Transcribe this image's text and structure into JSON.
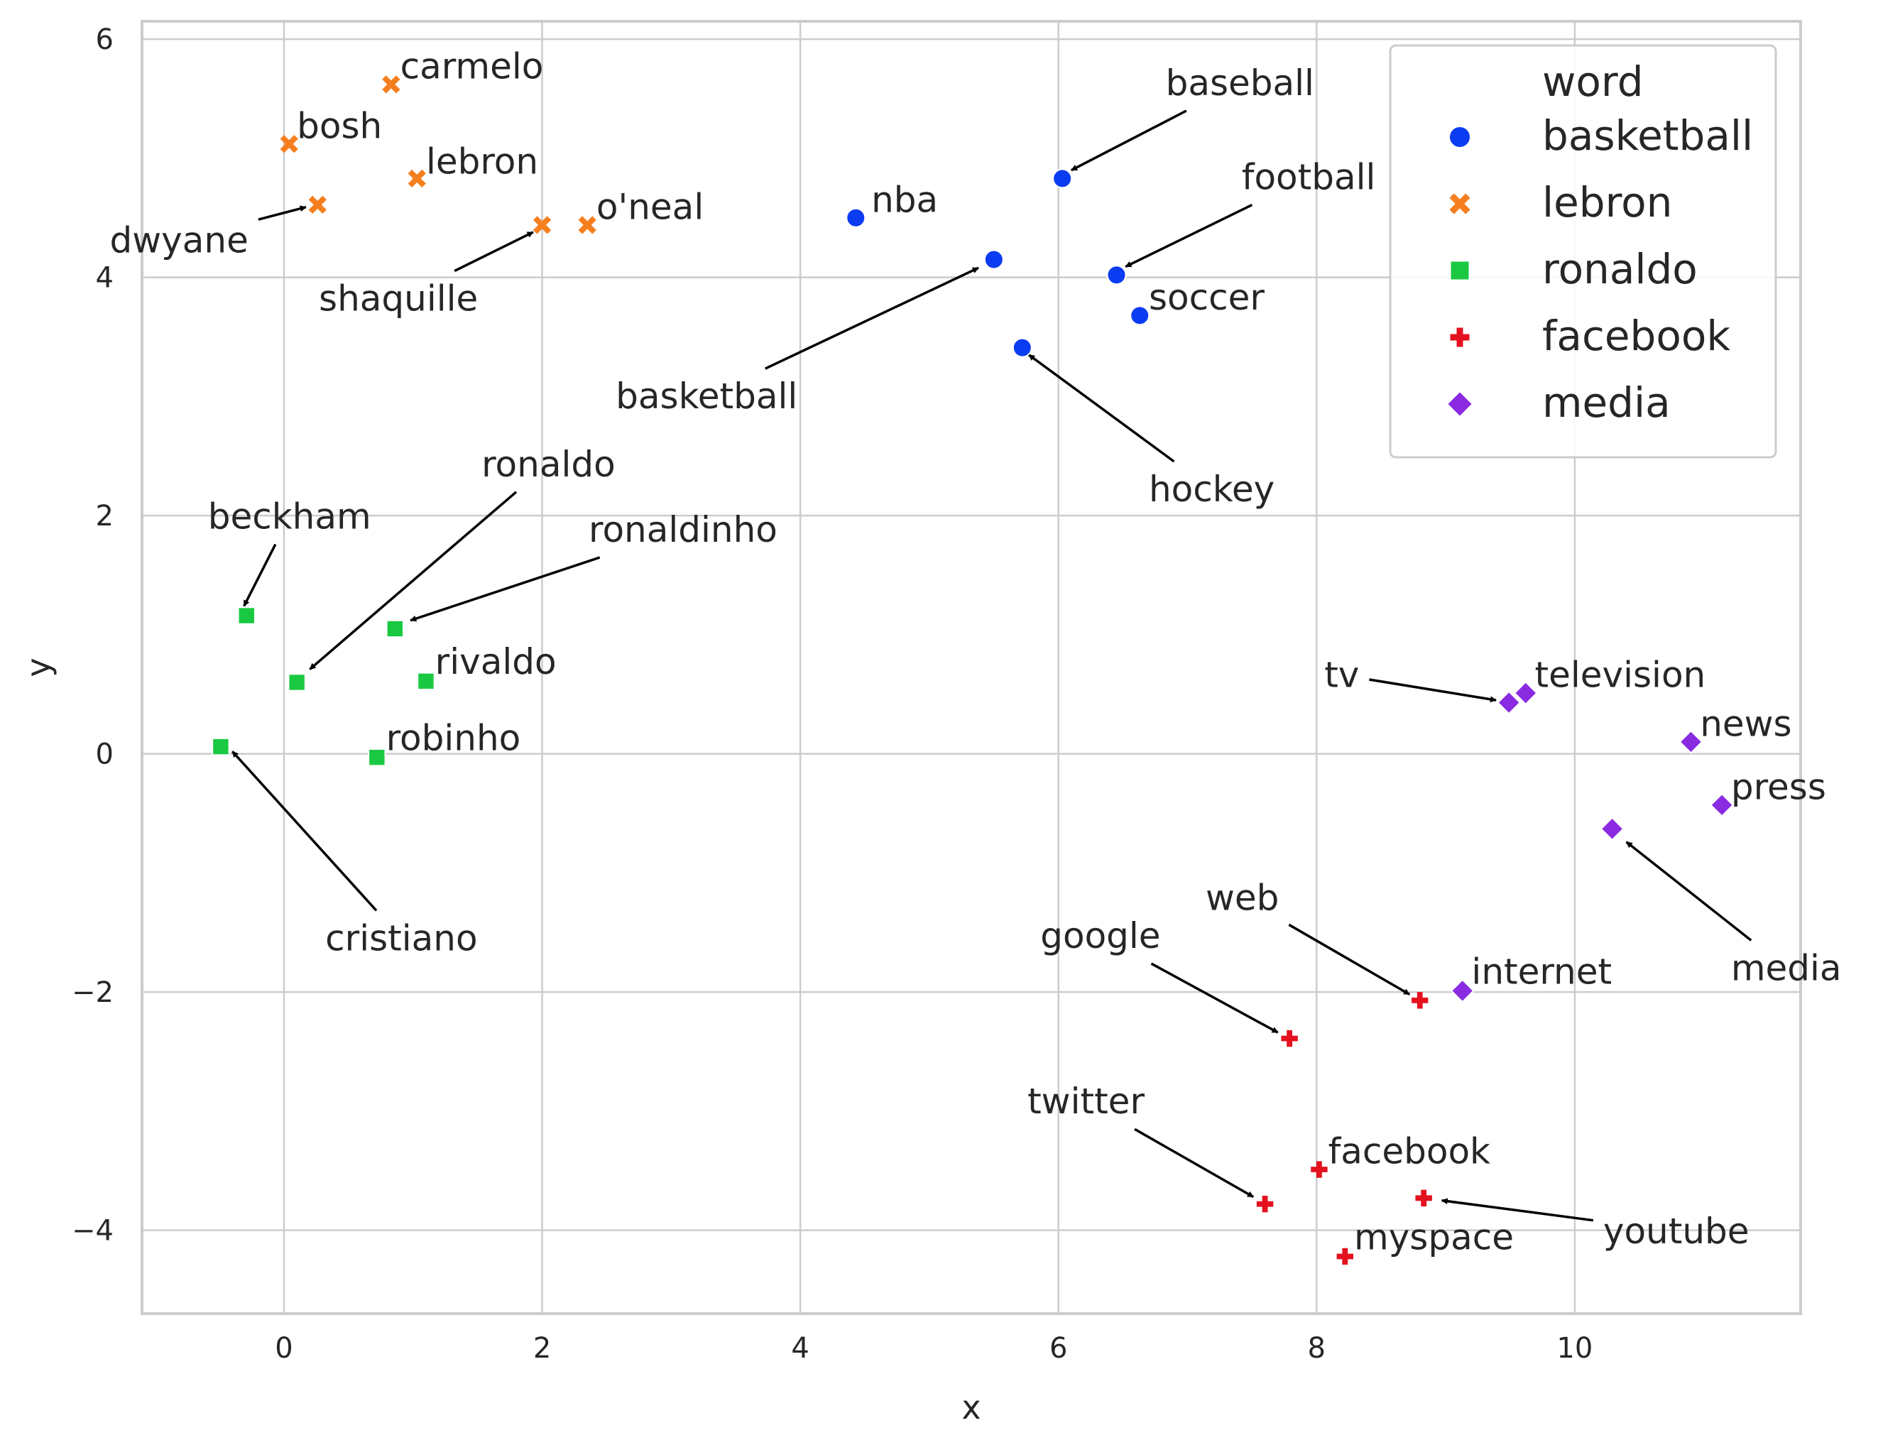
{
  "chart_data": {
    "type": "scatter",
    "xlabel": "x",
    "ylabel": "y",
    "xlim": [
      -1.1,
      11.75
    ],
    "ylim": [
      -4.7,
      6.15
    ],
    "xticks": [
      0,
      2,
      4,
      6,
      8,
      10
    ],
    "yticks": [
      -4,
      -2,
      0,
      2,
      4,
      6
    ],
    "xtick_labels": [
      "0",
      "2",
      "4",
      "6",
      "8",
      "10"
    ],
    "ytick_labels": [
      "−4",
      "−2",
      "0",
      "2",
      "4",
      "6"
    ],
    "grid": true,
    "legend": {
      "title": "word",
      "placement": "top-right",
      "entries": [
        {
          "label": "basketball",
          "marker": "circle",
          "color": "#0b3cf1"
        },
        {
          "label": "lebron",
          "marker": "x",
          "color": "#f57f1f"
        },
        {
          "label": "ronaldo",
          "marker": "square",
          "color": "#1ac941"
        },
        {
          "label": "facebook",
          "marker": "plus",
          "color": "#e4111e"
        },
        {
          "label": "media",
          "marker": "diamond",
          "color": "#8a2be2"
        }
      ]
    },
    "series": [
      {
        "name": "basketball",
        "marker": "circle",
        "color": "#0b3cf1",
        "points": [
          {
            "label": "nba",
            "x": 4.43,
            "y": 4.5
          },
          {
            "label": "baseball",
            "x": 6.03,
            "y": 4.83
          },
          {
            "label": "basketball",
            "x": 5.5,
            "y": 4.15
          },
          {
            "label": "football",
            "x": 6.45,
            "y": 4.02
          },
          {
            "label": "soccer",
            "x": 6.63,
            "y": 3.68
          },
          {
            "label": "hockey",
            "x": 5.72,
            "y": 3.41
          }
        ]
      },
      {
        "name": "lebron",
        "marker": "x",
        "color": "#f57f1f",
        "points": [
          {
            "label": "carmelo",
            "x": 0.83,
            "y": 5.62
          },
          {
            "label": "bosh",
            "x": 0.04,
            "y": 5.12
          },
          {
            "label": "lebron",
            "x": 1.03,
            "y": 4.83
          },
          {
            "label": "dwyane",
            "x": 0.26,
            "y": 4.61
          },
          {
            "label": "shaquille",
            "x": 2.0,
            "y": 4.44
          },
          {
            "label": "o'neal",
            "x": 2.35,
            "y": 4.44
          }
        ]
      },
      {
        "name": "ronaldo",
        "marker": "square",
        "color": "#1ac941",
        "points": [
          {
            "label": "beckham",
            "x": -0.29,
            "y": 1.16
          },
          {
            "label": "ronaldinho",
            "x": 0.86,
            "y": 1.05
          },
          {
            "label": "ronaldo",
            "x": 0.1,
            "y": 0.6
          },
          {
            "label": "rivaldo",
            "x": 1.1,
            "y": 0.61
          },
          {
            "label": "cristiano",
            "x": -0.49,
            "y": 0.06
          },
          {
            "label": "robinho",
            "x": 0.72,
            "y": -0.03
          }
        ]
      },
      {
        "name": "facebook",
        "marker": "plus",
        "color": "#e4111e",
        "points": [
          {
            "label": "web",
            "x": 8.8,
            "y": -2.07
          },
          {
            "label": "google",
            "x": 7.79,
            "y": -2.39
          },
          {
            "label": "facebook",
            "x": 8.02,
            "y": -3.49
          },
          {
            "label": "twitter",
            "x": 7.6,
            "y": -3.78
          },
          {
            "label": "youtube",
            "x": 8.83,
            "y": -3.73
          },
          {
            "label": "myspace",
            "x": 8.22,
            "y": -4.22
          }
        ]
      },
      {
        "name": "media",
        "marker": "diamond",
        "color": "#8a2be2",
        "points": [
          {
            "label": "tv",
            "x": 9.49,
            "y": 0.43
          },
          {
            "label": "television",
            "x": 9.62,
            "y": 0.51
          },
          {
            "label": "news",
            "x": 10.9,
            "y": 0.1
          },
          {
            "label": "press",
            "x": 11.14,
            "y": -0.43
          },
          {
            "label": "media",
            "x": 10.29,
            "y": -0.63
          },
          {
            "label": "internet",
            "x": 9.13,
            "y": -1.99
          }
        ]
      }
    ],
    "annotations": [
      {
        "text": "nba",
        "x": 4.55,
        "y": 4.55,
        "arrow": false
      },
      {
        "text": "carmelo",
        "x": 0.9,
        "y": 5.67,
        "arrow": false
      },
      {
        "text": "bosh",
        "x": 0.1,
        "y": 5.17,
        "arrow": false
      },
      {
        "text": "lebron",
        "x": 1.1,
        "y": 4.87,
        "arrow": false
      },
      {
        "text": "o'neal",
        "x": 2.42,
        "y": 4.49,
        "arrow": false
      },
      {
        "text": "soccer",
        "x": 6.7,
        "y": 3.73,
        "arrow": false
      },
      {
        "text": "rivaldo",
        "x": 1.17,
        "y": 0.67,
        "arrow": false
      },
      {
        "text": "robinho",
        "x": 0.79,
        "y": 0.03,
        "arrow": false
      },
      {
        "text": "television",
        "x": 9.69,
        "y": 0.56,
        "arrow": false
      },
      {
        "text": "news",
        "x": 10.97,
        "y": 0.15,
        "arrow": false
      },
      {
        "text": "press",
        "x": 11.21,
        "y": -0.38,
        "arrow": false
      },
      {
        "text": "internet",
        "x": 9.2,
        "y": -1.93,
        "arrow": false
      },
      {
        "text": "facebook",
        "x": 8.09,
        "y": -3.44,
        "arrow": false
      },
      {
        "text": "myspace",
        "x": 8.29,
        "y": -4.16,
        "arrow": false
      },
      {
        "text": "baseball",
        "x": 6.83,
        "y": 5.53,
        "arrow": true,
        "target": [
          6.1,
          4.9
        ]
      },
      {
        "text": "football",
        "x": 7.42,
        "y": 4.74,
        "arrow": true,
        "target": [
          6.52,
          4.09
        ]
      },
      {
        "text": "basketball",
        "x": 2.57,
        "y": 2.9,
        "arrow": true,
        "target": [
          5.38,
          4.08
        ]
      },
      {
        "text": "hockey",
        "x": 6.7,
        "y": 2.12,
        "arrow": true,
        "target": [
          5.77,
          3.35
        ]
      },
      {
        "text": "dwyane",
        "x": -1.35,
        "y": 4.21,
        "arrow": true,
        "target": [
          0.17,
          4.59
        ]
      },
      {
        "text": "shaquille",
        "x": 0.27,
        "y": 3.72,
        "arrow": true,
        "target": [
          1.93,
          4.38
        ]
      },
      {
        "text": "beckham",
        "x": -0.59,
        "y": 1.89,
        "arrow": true,
        "target": [
          -0.31,
          1.24
        ]
      },
      {
        "text": "ronaldo",
        "x": 1.53,
        "y": 2.33,
        "arrow": true,
        "target": [
          0.2,
          0.71
        ]
      },
      {
        "text": "ronaldinho",
        "x": 2.36,
        "y": 1.78,
        "arrow": true,
        "target": [
          0.98,
          1.12
        ]
      },
      {
        "text": "cristiano",
        "x": 0.32,
        "y": -1.65,
        "arrow": true,
        "target": [
          -0.4,
          0.02
        ]
      },
      {
        "text": "tv",
        "x": 8.06,
        "y": 0.56,
        "arrow": true,
        "target": [
          9.39,
          0.45
        ]
      },
      {
        "text": "media",
        "x": 11.21,
        "y": -1.9,
        "arrow": true,
        "target": [
          10.4,
          -0.74
        ]
      },
      {
        "text": "web",
        "x": 7.14,
        "y": -1.31,
        "arrow": true,
        "target": [
          8.72,
          -2.02
        ]
      },
      {
        "text": "google",
        "x": 5.86,
        "y": -1.63,
        "arrow": true,
        "target": [
          7.7,
          -2.34
        ]
      },
      {
        "text": "twitter",
        "x": 5.76,
        "y": -3.02,
        "arrow": true,
        "target": [
          7.51,
          -3.72
        ]
      },
      {
        "text": "youtube",
        "x": 10.22,
        "y": -4.11,
        "arrow": true,
        "target": [
          8.97,
          -3.75
        ]
      }
    ]
  }
}
